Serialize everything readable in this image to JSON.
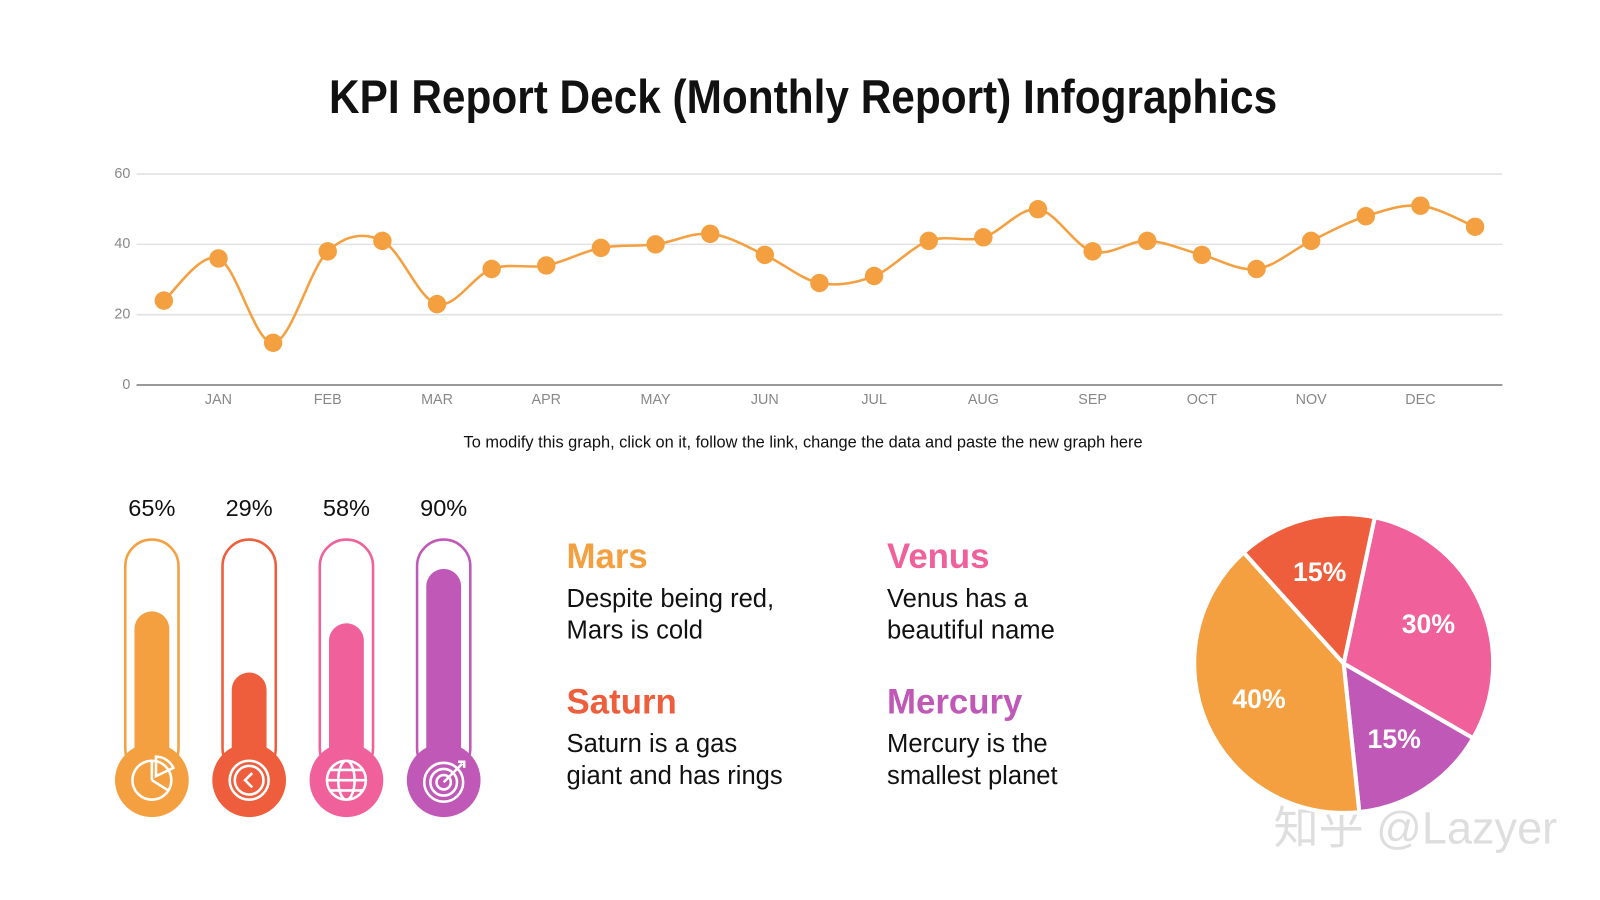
{
  "title": "KPI Report Deck (Monthly Report) Infographics",
  "note": "To modify this graph, click on it, follow the link, change the data and paste the new graph here",
  "watermark": "知乎 @Lazyer",
  "cards": [
    {
      "title": "Mars",
      "color": "#f4a040",
      "lines": [
        "Despite being red,",
        "Mars is cold"
      ]
    },
    {
      "title": "Venus",
      "color": "#f0609a",
      "lines": [
        "Venus has a",
        "beautiful name"
      ]
    },
    {
      "title": "Saturn",
      "color": "#ef5e3c",
      "lines": [
        "Saturn is a gas",
        "giant and has rings"
      ]
    },
    {
      "title": "Mercury",
      "color": "#c058b8",
      "lines": [
        "Mercury is the",
        "smallest planet"
      ]
    }
  ],
  "chart_data": [
    {
      "type": "line",
      "categories": [
        null,
        "JAN",
        null,
        "FEB",
        null,
        "MAR",
        null,
        "APR",
        null,
        "MAY",
        null,
        "JUN",
        null,
        "JUL",
        null,
        "AUG",
        null,
        "SEP",
        null,
        "OCT",
        null,
        "NOV",
        null,
        "DEC",
        null
      ],
      "values": [
        24,
        36,
        12,
        38,
        41,
        23,
        33,
        34,
        39,
        40,
        43,
        37,
        29,
        31,
        41,
        42,
        50,
        38,
        41,
        37,
        33,
        41,
        48,
        51,
        45
      ],
      "color": "#f4a040",
      "ylim": [
        0,
        60
      ],
      "yticks": [
        0,
        20,
        40,
        60
      ],
      "grid": true
    },
    {
      "type": "thermometer",
      "values": [
        65,
        29,
        58,
        90
      ],
      "value_labels": [
        "65%",
        "29%",
        "58%",
        "90%"
      ],
      "colors": [
        "#f4a040",
        "#ef5e3c",
        "#f0609a",
        "#c058b8"
      ],
      "ylim": [
        0,
        100
      ]
    },
    {
      "type": "pie",
      "values": [
        30,
        15,
        40,
        15
      ],
      "value_labels": [
        "30%",
        "15%",
        "40%",
        "15%"
      ],
      "colors": [
        "#f0609a",
        "#c058b8",
        "#f4a040",
        "#ef5e3c"
      ]
    }
  ]
}
